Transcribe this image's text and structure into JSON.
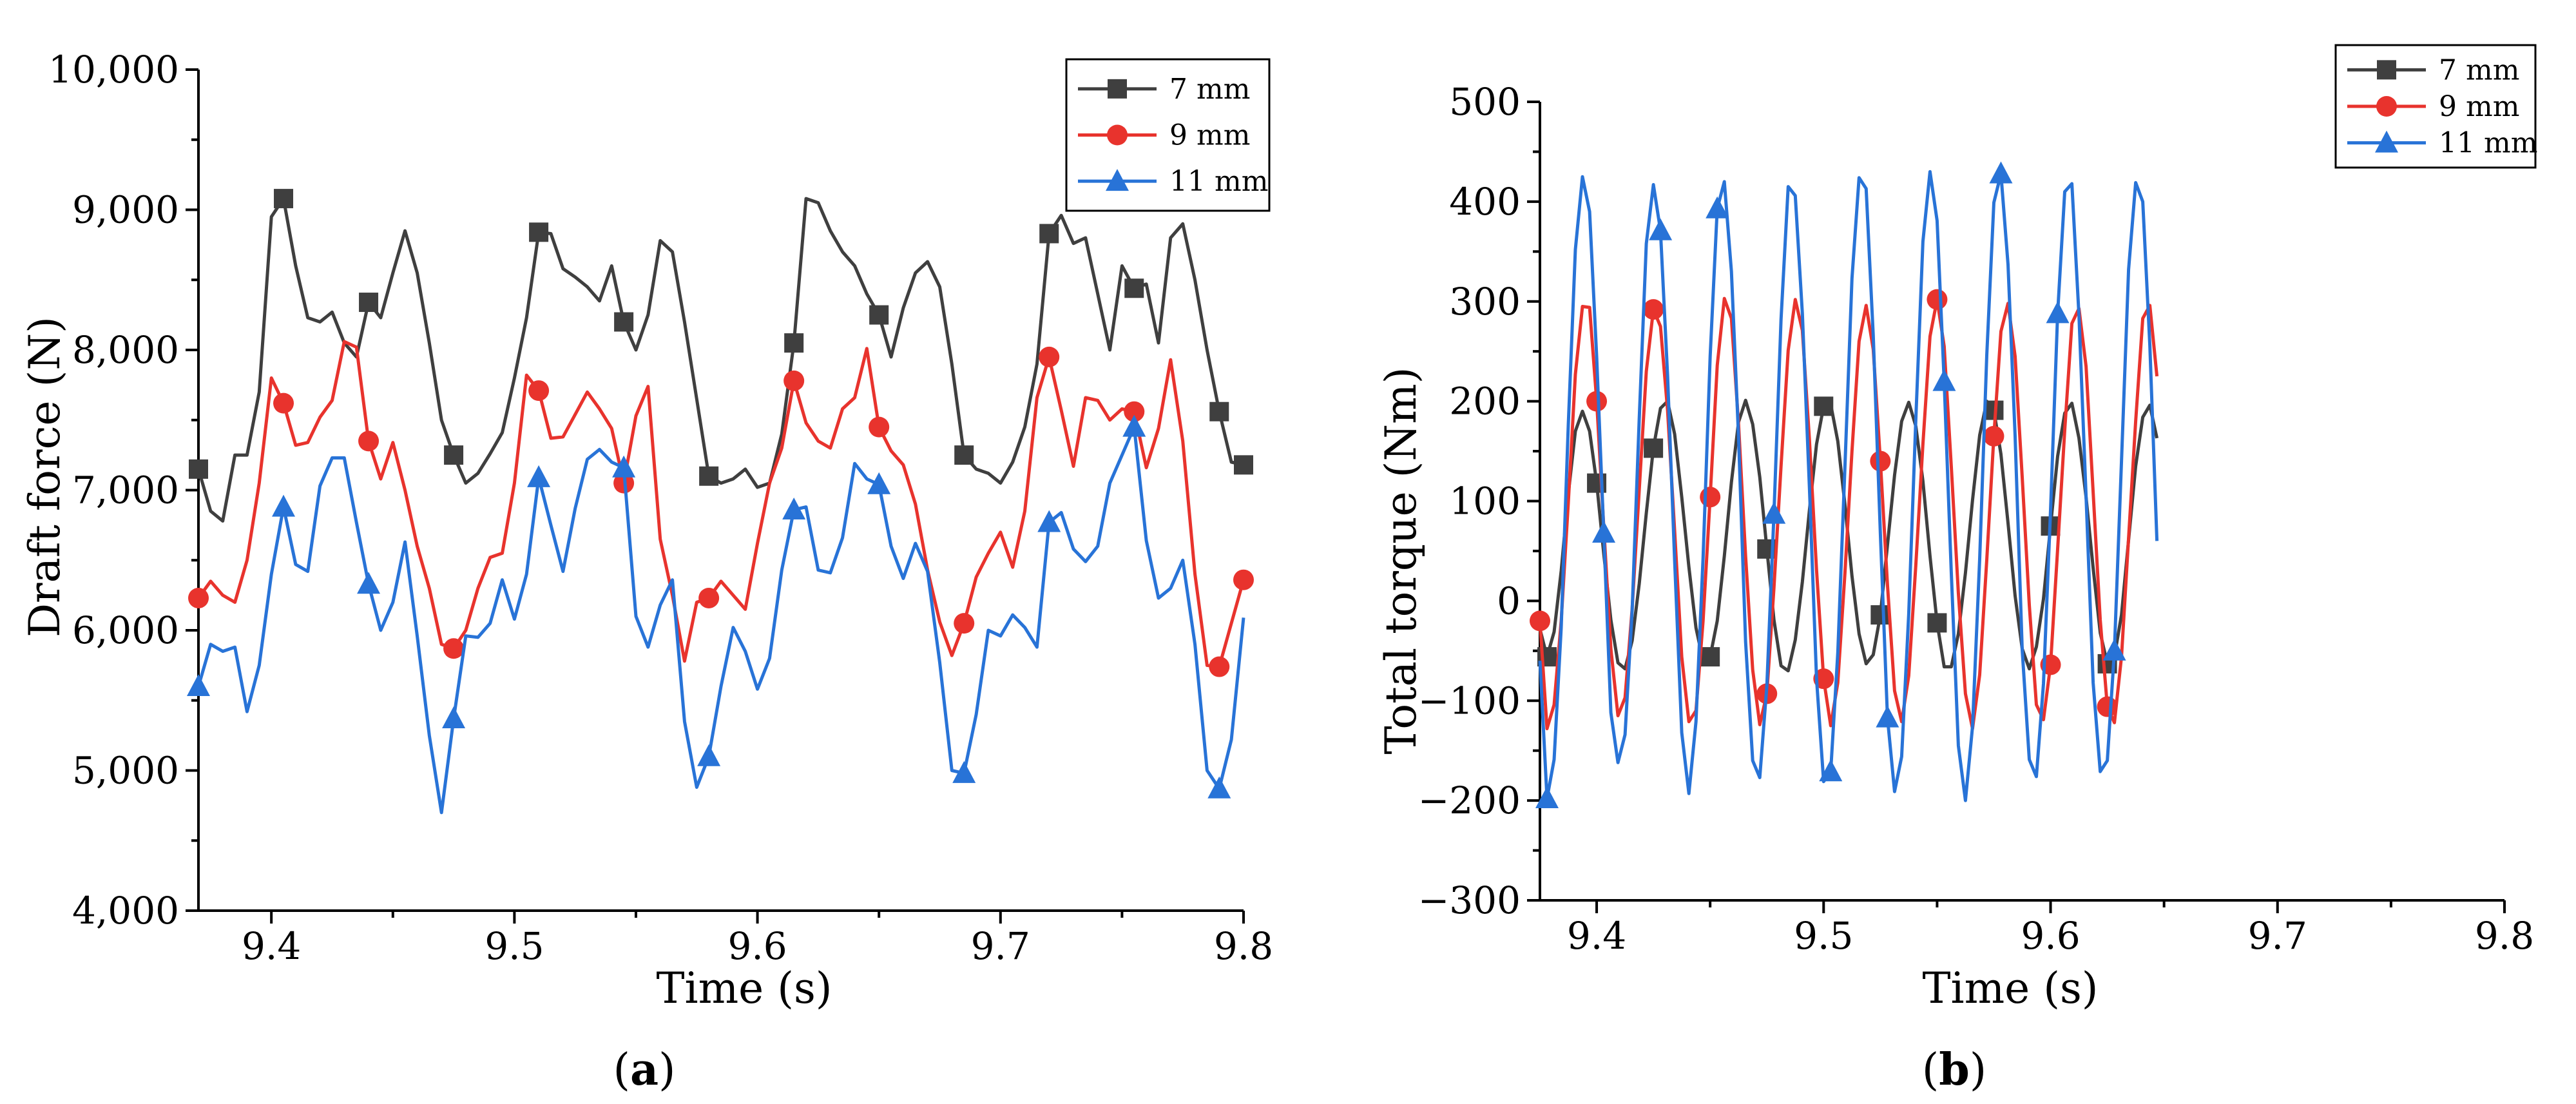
{
  "figure": {
    "panels": [
      {
        "label_open": "(",
        "label_letter": "a",
        "label_close": ")"
      },
      {
        "label_open": "(",
        "label_letter": "b",
        "label_close": ")"
      }
    ]
  },
  "chart_data": [
    {
      "type": "line",
      "title": "",
      "xlabel": "Time (s)",
      "ylabel": "Draft force (N)",
      "xlim": [
        9.37,
        9.8
      ],
      "ylim": [
        4000,
        10000
      ],
      "xticks": [
        9.4,
        9.5,
        9.6,
        9.7,
        9.8
      ],
      "xtick_labels": [
        "9.4",
        "9.5",
        "9.6",
        "9.7",
        "9.8"
      ],
      "yticks": [
        4000,
        5000,
        6000,
        7000,
        8000,
        9000,
        10000
      ],
      "ytick_labels": [
        "4,000",
        "5,000",
        "6,000",
        "7,000",
        "8,000",
        "9,000",
        "10,000"
      ],
      "legend_position": "top-right",
      "grid": false,
      "x": [
        9.37,
        9.375,
        9.38,
        9.385,
        9.39,
        9.395,
        9.4,
        9.405,
        9.41,
        9.415,
        9.42,
        9.425,
        9.43,
        9.435,
        9.44,
        9.445,
        9.45,
        9.455,
        9.46,
        9.465,
        9.47,
        9.475,
        9.48,
        9.485,
        9.49,
        9.495,
        9.5,
        9.505,
        9.51,
        9.515,
        9.52,
        9.525,
        9.53,
        9.535,
        9.54,
        9.545,
        9.55,
        9.555,
        9.56,
        9.565,
        9.57,
        9.575,
        9.58,
        9.585,
        9.59,
        9.595,
        9.6,
        9.605,
        9.61,
        9.615,
        9.62,
        9.625,
        9.63,
        9.635,
        9.64,
        9.645,
        9.65,
        9.655,
        9.66,
        9.665,
        9.67,
        9.675,
        9.68,
        9.685,
        9.69,
        9.695,
        9.7,
        9.705,
        9.71,
        9.715,
        9.72,
        9.725,
        9.73,
        9.735,
        9.74,
        9.745,
        9.75,
        9.755,
        9.76,
        9.765,
        9.77,
        9.775,
        9.78,
        9.785,
        9.79,
        9.795,
        9.8
      ],
      "series": [
        {
          "name": "7 mm",
          "color": "#3f3f3f",
          "marker": "square",
          "values": [
            7150,
            6850,
            6780,
            7250,
            7250,
            7700,
            8950,
            9080,
            8600,
            8230,
            8200,
            8270,
            8050,
            7950,
            8340,
            8230,
            8550,
            8850,
            8550,
            8050,
            7500,
            7250,
            7050,
            7120,
            7260,
            7410,
            7800,
            8230,
            8840,
            8830,
            8580,
            8520,
            8450,
            8350,
            8600,
            8200,
            8000,
            8250,
            8780,
            8700,
            8200,
            7650,
            7100,
            7050,
            7080,
            7150,
            7020,
            7050,
            7400,
            8050,
            9080,
            9050,
            8850,
            8700,
            8600,
            8400,
            8250,
            7950,
            8300,
            8550,
            8630,
            8450,
            7900,
            7250,
            7150,
            7120,
            7050,
            7200,
            7450,
            7900,
            8830,
            8960,
            8760,
            8800,
            8400,
            8000,
            8600,
            8440,
            8470,
            8050,
            8800,
            8900,
            8500,
            8000,
            7560,
            7200,
            7180
          ],
          "marker_indices": [
            0,
            7,
            14,
            21,
            28,
            35,
            42,
            49,
            56,
            63,
            70,
            77,
            84,
            86
          ]
        },
        {
          "name": "9 mm",
          "color": "#e8332d",
          "marker": "circle",
          "values": [
            6230,
            6350,
            6250,
            6200,
            6500,
            7050,
            7800,
            7620,
            7320,
            7340,
            7520,
            7640,
            8060,
            8020,
            7350,
            7080,
            7340,
            7000,
            6600,
            6300,
            5900,
            5870,
            6000,
            6300,
            6520,
            6550,
            7050,
            7820,
            7710,
            7370,
            7380,
            7540,
            7700,
            7580,
            7440,
            7050,
            7530,
            7740,
            6650,
            6250,
            5780,
            6200,
            6230,
            6350,
            6250,
            6150,
            6620,
            7050,
            7300,
            7780,
            7480,
            7350,
            7300,
            7580,
            7660,
            8010,
            7450,
            7280,
            7180,
            6900,
            6430,
            6060,
            5820,
            6050,
            6380,
            6550,
            6700,
            6450,
            6850,
            7660,
            7950,
            7570,
            7170,
            7660,
            7640,
            7500,
            7580,
            7560,
            7160,
            7440,
            7930,
            7350,
            6400,
            5750,
            5740,
            6050,
            6360
          ],
          "marker_indices": [
            0,
            7,
            14,
            21,
            28,
            35,
            42,
            49,
            56,
            63,
            70,
            77,
            84,
            86
          ]
        },
        {
          "name": "11 mm",
          "color": "#2873d7",
          "marker": "triangle",
          "values": [
            5600,
            5900,
            5850,
            5880,
            5420,
            5750,
            6400,
            6880,
            6470,
            6420,
            7030,
            7230,
            7230,
            6770,
            6330,
            6000,
            6200,
            6630,
            5960,
            5250,
            4700,
            5370,
            5960,
            5950,
            6050,
            6360,
            6080,
            6400,
            7090,
            6750,
            6420,
            6870,
            7220,
            7290,
            7200,
            7160,
            6100,
            5880,
            6180,
            6360,
            5350,
            4880,
            5100,
            5600,
            6020,
            5850,
            5580,
            5800,
            6430,
            6860,
            6880,
            6430,
            6410,
            6660,
            7190,
            7080,
            7040,
            6600,
            6370,
            6620,
            6420,
            5770,
            5000,
            4980,
            5400,
            6000,
            5960,
            6110,
            6020,
            5880,
            6770,
            6840,
            6580,
            6490,
            6600,
            7050,
            7250,
            7450,
            6640,
            6230,
            6300,
            6500,
            5900,
            5000,
            4870,
            5220,
            6090
          ],
          "marker_indices": [
            0,
            7,
            14,
            21,
            28,
            35,
            42,
            49,
            56,
            63,
            70,
            77,
            84
          ]
        }
      ]
    },
    {
      "type": "line",
      "title": "",
      "xlabel": "Time (s)",
      "ylabel": "Total torque (Nm)",
      "xlim": [
        9.375,
        9.8
      ],
      "ylim": [
        -300,
        500
      ],
      "xticks": [
        9.4,
        9.5,
        9.6,
        9.7,
        9.8
      ],
      "xtick_labels": [
        "9.4",
        "9.5",
        "9.6",
        "9.7",
        "9.8"
      ],
      "yticks": [
        -300,
        -200,
        -100,
        0,
        100,
        200,
        300,
        400,
        500
      ],
      "ytick_labels": [
        "−300",
        "−200",
        "−100",
        "0",
        "100",
        "200",
        "300",
        "400",
        "500"
      ],
      "legend_position": "top-right",
      "grid": false,
      "x_start": 9.375,
      "x_step": 0.003125,
      "series": [
        {
          "name": "7 mm",
          "color": "#3f3f3f",
          "marker": "square",
          "values": [
            -28,
            -56,
            -31,
            30,
            107,
            170,
            190,
            170,
            118,
            47,
            -19,
            -62,
            -68,
            -40,
            17,
            88,
            153,
            193,
            200,
            167,
            104,
            34,
            -27,
            -60,
            -56,
            -20,
            45,
            119,
            179,
            201,
            177,
            124,
            52,
            -19,
            -65,
            -70,
            -39,
            19,
            91,
            157,
            195,
            197,
            160,
            97,
            25,
            -33,
            -63,
            -54,
            -14,
            56,
            126,
            180,
            199,
            175,
            120,
            45,
            -22,
            -66,
            -66,
            -33,
            28,
            101,
            166,
            200,
            191,
            147,
            78,
            5,
            -48,
            -68,
            -46,
            2,
            75,
            145,
            188,
            198,
            163,
            104,
            33,
            -32,
            -63,
            -56,
            -14,
            61,
            135,
            184,
            196,
            163
          ],
          "marker_indices": [
            1,
            8,
            16,
            24,
            32,
            40,
            48,
            56,
            64,
            72,
            80,
            88,
            96,
            104,
            112,
            120,
            128,
            136
          ]
        },
        {
          "name": "9 mm",
          "color": "#e8332d",
          "marker": "circle",
          "values": [
            -20,
            -128,
            -104,
            -20,
            98,
            227,
            295,
            294,
            200,
            74,
            -48,
            -115,
            -97,
            -8,
            111,
            230,
            292,
            275,
            191,
            70,
            -56,
            -121,
            -110,
            -20,
            104,
            236,
            303,
            283,
            178,
            45,
            -69,
            -124,
            -93,
            13,
            135,
            251,
            302,
            271,
            161,
            31,
            -78,
            -125,
            -82,
            27,
            150,
            260,
            296,
            252,
            140,
            16,
            -90,
            -121,
            -75,
            36,
            157,
            265,
            302,
            255,
            135,
            8,
            -93,
            -128,
            -74,
            41,
            165,
            270,
            298,
            245,
            124,
            -4,
            -104,
            -119,
            -64,
            52,
            171,
            278,
            293,
            235,
            109,
            -19,
            -106,
            -122,
            -56,
            63,
            180,
            283,
            296,
            225
          ],
          "marker_indices": [
            0,
            8,
            16,
            24,
            32,
            40,
            48,
            56,
            64,
            72,
            80,
            88,
            96,
            104,
            112,
            120,
            128,
            136
          ]
        },
        {
          "name": "11 mm",
          "color": "#2873d7",
          "marker": "triangle",
          "values": [
            -60,
            -198,
            -159,
            -27,
            176,
            352,
            425,
            390,
            244,
            68,
            -112,
            -162,
            -134,
            -10,
            182,
            358,
            417,
            371,
            226,
            40,
            -132,
            -193,
            -121,
            43,
            245,
            393,
            420,
            330,
            165,
            -41,
            -160,
            -177,
            -85,
            87,
            282,
            415,
            406,
            288,
            113,
            -78,
            -181,
            -171,
            -52,
            133,
            323,
            424,
            413,
            266,
            67,
            -117,
            -191,
            -156,
            -13,
            182,
            360,
            430,
            381,
            220,
            29,
            -145,
            -200,
            -126,
            42,
            246,
            399,
            428,
            337,
            165,
            -49,
            -159,
            -176,
            -83,
            91,
            288,
            410,
            418,
            286,
            105,
            -82,
            -171,
            -160,
            -50,
            140,
            332,
            419,
            400,
            256,
            60
          ],
          "marker_indices": [
            1,
            9,
            17,
            25,
            33,
            41,
            49,
            57,
            65,
            73,
            81,
            89,
            97,
            105,
            113,
            121,
            129,
            136
          ]
        }
      ]
    }
  ]
}
